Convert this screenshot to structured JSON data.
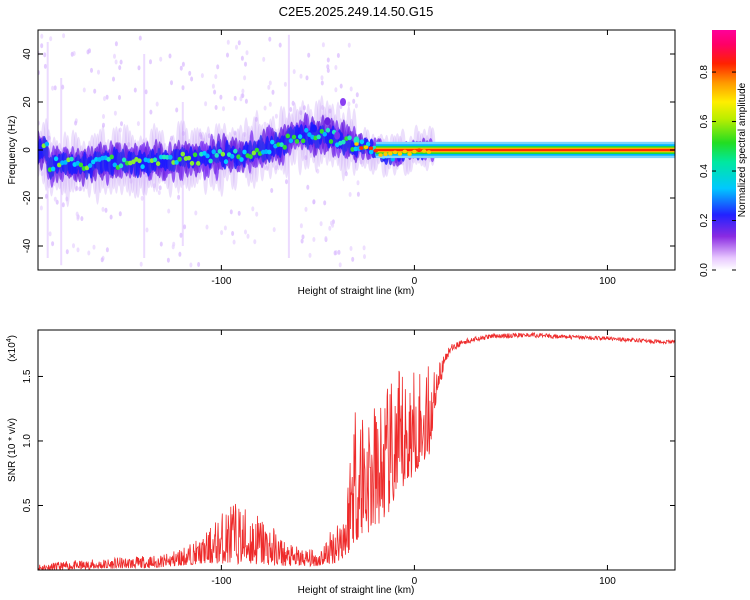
{
  "chart_data": [
    {
      "type": "heatmap",
      "title": "C2E5.2025.249.14.50.G15",
      "xlabel": "Height of straight line (km)",
      "ylabel": "Frequency (Hz)",
      "xlim": [
        -195,
        135
      ],
      "ylim": [
        -50,
        50
      ],
      "xticks": [
        -100,
        0,
        100
      ],
      "yticks": [
        -40,
        -20,
        0,
        20,
        40
      ],
      "colorbar": {
        "label": "Normalized spectral amplitude",
        "range": [
          0.0,
          0.97
        ],
        "ticks": [
          0.0,
          0.2,
          0.4,
          0.6,
          0.8
        ]
      },
      "ridge": [
        {
          "x": -190,
          "f": -6
        },
        {
          "x": -170,
          "f": -6
        },
        {
          "x": -150,
          "f": -5
        },
        {
          "x": -130,
          "f": -5
        },
        {
          "x": -110,
          "f": -3
        },
        {
          "x": -90,
          "f": -2
        },
        {
          "x": -70,
          "f": 2
        },
        {
          "x": -60,
          "f": 6
        },
        {
          "x": -45,
          "f": 6
        },
        {
          "x": -35,
          "f": 3
        },
        {
          "x": -25,
          "f": 1
        },
        {
          "x": -15,
          "f": -2
        },
        {
          "x": -5,
          "f": -1
        },
        {
          "x": 10,
          "f": 0
        },
        {
          "x": 135,
          "f": 0
        }
      ]
    },
    {
      "type": "line",
      "title": "",
      "xlabel": "Height of straight line (km)",
      "ylabel": "SNR (10 * v/v)",
      "yscale_label": "(x10",
      "yscale_exp": "4",
      "xlim": [
        -195,
        135
      ],
      "ylim": [
        0,
        1.86
      ],
      "xticks": [
        -100,
        0,
        100
      ],
      "yticks": [
        0.5,
        1.0,
        1.5
      ],
      "ytick_labels": [
        "0.5",
        "1.0",
        "1.5"
      ],
      "series": [
        {
          "name": "SNR",
          "color": "#ee2b2b",
          "envelope": [
            {
              "x": -195,
              "lo": 0.0,
              "hi": 0.05
            },
            {
              "x": -160,
              "lo": 0.01,
              "hi": 0.09
            },
            {
              "x": -130,
              "lo": 0.02,
              "hi": 0.12
            },
            {
              "x": -110,
              "lo": 0.05,
              "hi": 0.25
            },
            {
              "x": -95,
              "lo": 0.05,
              "hi": 0.55
            },
            {
              "x": -80,
              "lo": 0.04,
              "hi": 0.45
            },
            {
              "x": -65,
              "lo": 0.03,
              "hi": 0.2
            },
            {
              "x": -50,
              "lo": 0.03,
              "hi": 0.15
            },
            {
              "x": -42,
              "lo": 0.05,
              "hi": 0.35
            },
            {
              "x": -35,
              "lo": 0.1,
              "hi": 0.6
            },
            {
              "x": -32,
              "lo": 0.2,
              "hi": 1.4
            },
            {
              "x": -28,
              "lo": 0.25,
              "hi": 1.45
            },
            {
              "x": -22,
              "lo": 0.3,
              "hi": 1.3
            },
            {
              "x": -15,
              "lo": 0.4,
              "hi": 1.4
            },
            {
              "x": -8,
              "lo": 0.55,
              "hi": 1.55
            },
            {
              "x": 0,
              "lo": 0.75,
              "hi": 1.6
            },
            {
              "x": 8,
              "lo": 0.9,
              "hi": 1.6
            },
            {
              "x": 12,
              "lo": 1.4,
              "hi": 1.58
            },
            {
              "x": 18,
              "lo": 1.62,
              "hi": 1.74
            },
            {
              "x": 25,
              "lo": 1.72,
              "hi": 1.79
            },
            {
              "x": 40,
              "lo": 1.77,
              "hi": 1.83
            },
            {
              "x": 60,
              "lo": 1.78,
              "hi": 1.84
            },
            {
              "x": 80,
              "lo": 1.77,
              "hi": 1.82
            },
            {
              "x": 100,
              "lo": 1.76,
              "hi": 1.81
            },
            {
              "x": 120,
              "lo": 1.74,
              "hi": 1.79
            },
            {
              "x": 135,
              "lo": 1.73,
              "hi": 1.78
            }
          ]
        }
      ]
    }
  ]
}
